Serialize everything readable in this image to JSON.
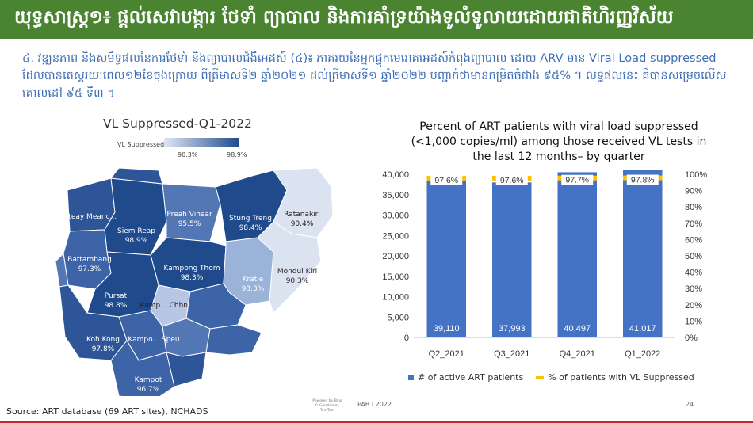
{
  "banner": {
    "title": "យុទ្ធសាស្ត្រ១៖ ផ្តល់សេវាបង្ការ ថែទាំ ព្យាបាល និងការគាំទ្រយ៉ាងទូលំទូលាយដោយជាតិហិរញ្ញវិស័យ"
  },
  "bullet": {
    "text": "៤. វឌ្ឍនភាព និងសមិទ្ធផលនៃការថែទាំ និងព្យាបាលជំងឺអេដស៍ (៤)៖ ភាគរយនៃអ្នកផ្ទុកមេរោគអេដស៍កំពុងព្យាបាល ដោយ ARV មាន Viral Load suppressed ដែលបានតេស្តរយៈពេល១២ខែចុងក្រោយ ពីត្រីមាសទី២ ឆ្នាំ២០២១ ដល់ត្រីមាសទី១ ឆ្នាំ២០២២ បញ្ជាក់ថាមានកម្រិតធំជាង ៩៥% ។ លទ្ធផលនេះ គឺបានសម្រេចលើសគោលដៅ ៩៥ ទី៣ ។"
  },
  "map": {
    "title": "VL Suppressed-Q1-2022",
    "legend_label": "VL Suppressed",
    "legend_min": "90.3%",
    "legend_max": "98.9%",
    "colors": {
      "dark": "#1f4a8c",
      "mid": "#5377b5",
      "light": "#b7c6e3",
      "lightest": "#dbe3f1"
    },
    "provinces": [
      {
        "name": "Banteay Meanc...",
        "value": ""
      },
      {
        "name": "Siem Reap",
        "value": "98.9%"
      },
      {
        "name": "Preah Vihear",
        "value": "95.5%"
      },
      {
        "name": "Stung Treng",
        "value": "98.4%"
      },
      {
        "name": "Ratanakiri",
        "value": "90.4%"
      },
      {
        "name": "Battambang",
        "value": "97.3%"
      },
      {
        "name": "Kampong Thom",
        "value": "98.3%"
      },
      {
        "name": "Kratie",
        "value": "93.3%"
      },
      {
        "name": "Mondul Kiri",
        "value": "90.3%"
      },
      {
        "name": "Pursat",
        "value": "98.8%"
      },
      {
        "name": "Kamp... Chhn...",
        "value": ""
      },
      {
        "name": "Koh Kong",
        "value": "97.8%"
      },
      {
        "name": "Kampo... Speu",
        "value": ""
      },
      {
        "name": "Kampot",
        "value": "96.7%"
      }
    ]
  },
  "footer": {
    "powered": "Powered by Bing",
    "copyright": "© GeoNames, TomTom",
    "org": "PAB I 2022",
    "page": "24",
    "source": "Source: ART database (69 ART sites), NCHADS"
  },
  "chart_data": {
    "type": "bar",
    "title": "Percent of ART patients with viral load suppressed (<1,000 copies/ml) among those received VL tests in the last 12 months– by quarter",
    "categories": [
      "Q2_2021",
      "Q3_2021",
      "Q4_2021",
      "Q1_2022"
    ],
    "series": [
      {
        "name": "# of active ART patients",
        "axis": "left",
        "type": "bar",
        "color": "#4472c4",
        "values": [
          39110,
          37993,
          40497,
          41017
        ],
        "labels": [
          "39,110",
          "37,993",
          "40,497",
          "41,017"
        ]
      },
      {
        "name": "% of patients with VL Suppressed",
        "axis": "right",
        "type": "marker",
        "color": "#ffc000",
        "values": [
          97.6,
          97.6,
          97.7,
          97.8
        ],
        "labels": [
          "97.6%",
          "97.6%",
          "97.7%",
          "97.8%"
        ]
      }
    ],
    "ylim_left": [
      0,
      40000
    ],
    "yticks_left": [
      "0",
      "5,000",
      "10,000",
      "15,000",
      "20,000",
      "25,000",
      "30,000",
      "35,000",
      "40,000"
    ],
    "ylim_right": [
      0,
      100
    ],
    "yticks_right": [
      "0%",
      "10%",
      "20%",
      "30%",
      "40%",
      "50%",
      "60%",
      "70%",
      "80%",
      "90%",
      "100%"
    ],
    "legend_position": "bottom",
    "grid": false
  }
}
